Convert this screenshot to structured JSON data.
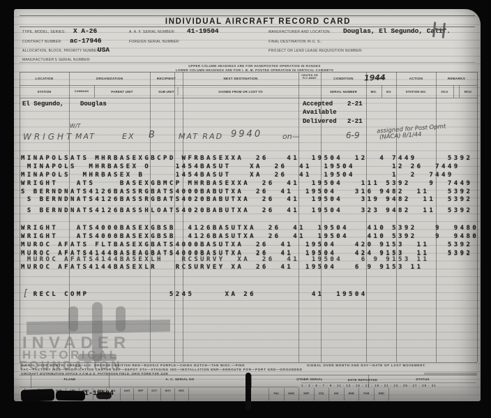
{
  "title": "INDIVIDUAL AIRCRAFT RECORD CARD",
  "scan": {
    "handwritten_corner_mark": "H"
  },
  "header_fields": {
    "type_label": "TYPE, MODEL, SERIES:",
    "type_value": "X A-26",
    "aaf_label": "A. A. F. SERIAL NUMBER:",
    "aaf_value": "41-19504",
    "mfr_label": "MANUFACTURER AND LOCATION:",
    "mfr_value": "Douglas, El Segundo, Calif.",
    "contract_label": "CONTRACT NUMBER:",
    "contract_value": "ac-17946",
    "foreign_label": "FOREIGN SERIAL NUMBER:",
    "dest_label": "FINAL DESTINATION IN U. S.:",
    "alloc_label": "ALLOCATION, BLOCK, PRIORITY NUMBER:",
    "alloc_value": "USA",
    "project_label": "PROJECT OR LEND LEASE REQUISITION NUMBER:",
    "mfr_serial_label": "MANUFACTURER'S SERIAL NUMBER:"
  },
  "notes": {
    "line1": "UPPER COLUMN HEADINGS ARE FOR HANDPOSTED OPERATION IN RANGES",
    "line2": "LOWER COLUMN HEADINGS ARE FOR I. B. M. POSTED OPERATION IN VERTICAL CABINETS"
  },
  "table": {
    "headers": {
      "location": "LOCATION",
      "organization": "ORGANIZATION",
      "recipient": "RECIPIENT",
      "next_destination": "NEXT DESTINATION",
      "crated": "CRATED OR FLY-AWAY",
      "condition": "CONDITION",
      "date": "DATE",
      "action": "ACTION",
      "remarks": "REMARKS",
      "station": "STATION",
      "command": "COMMAND",
      "parent_unit": "PARENT UNIT",
      "sub_unit": "SUB-UNIT",
      "route": "ROUTE",
      "gained": "GAINED FROM OR LOST TO",
      "serial_number": "SERIAL NUMBER",
      "mo": "MO.",
      "da": "DA",
      "station_no": "STATION NO.",
      "oca": "OCA",
      "rcu": "RCU"
    },
    "date_year_handwritten": "1944"
  },
  "entries": {
    "origin": {
      "station": "El Segundo,",
      "parent": "Douglas"
    },
    "status": [
      {
        "label": "Accepted",
        "date": "2-21"
      },
      {
        "label": "Available",
        "date": ""
      },
      {
        "label": "Delivered",
        "date": "2-21"
      }
    ],
    "handwritten": {
      "note_above": "W/T",
      "location": "WRIGHT",
      "command": "MAT",
      "parent": "EX",
      "sub_unit": "B",
      "gained": "MAT RAD",
      "gained_num": "9940",
      "crated": "on—",
      "date": "6-9",
      "remark_line1": "assigned for Post Opmt",
      "remark_line2": "(NACA) 8/1/44",
      "bracket": "["
    },
    "typed_rows": [
      "MINAPOLSATS MHRBASEXGBCPD WFRBASEXXA  26   41  19504  12  4 7449     5392",
      " MINAPOLS  MHRBASEX O    1454BASUT   XA  26  41  19504      12 26  7449",
      "MINAPOLS  MHRBASEX B     1454BASUT   XA  26  41  19504      1  2  7449",
      "WRIGHT   ATS    BASEXGBMCP MHRBASEXXA  26  41  19504   111 5392   9  7449",
      "S BERNDNATS4126BASSRGBATS4000BABUTXA  26  41  19504   316 9482  11   5392",
      " S BERNDNATS4126BASSRGBATS4020BABUTXA  26  41  19504   319 9482  11  5392",
      " S BERNDNATS4126BASSHLOATS4020BABUTXA  26  41  19504   323 9482  11  5392",
      "WRIGHT   ATS4000BASEXGBSB  4126BASUTXA  26  41  19504   410 5392   9  9480",
      "WRIGHT   ATS4000BASEXGBSB  4126BASUTXA  26  41  19504   410 5392   9  9480",
      "MUROC AFATS FLTBASEXGBATS4000BASUTXA  26  41  19504   420 9153  11   5392",
      "MUROC AFATS4144BASEAGBATS4000BASUTXA  26  41  19504   424 9153  11   5392",
      " MUROC AFATS4144BASEXLH   RCSURVY  XA  26  41  19504   6 9 9153 11",
      "MUROC AFATS4144BASEXLR   RCSURVEY XA  26  41  19504   6 9 9153 11",
      "  RECL COMP             5245     XA 26         41  19504"
    ]
  },
  "watermark": {
    "line1": "INVADER",
    "line2": "HISTORICAL",
    "line3": "FOUNDATION"
  },
  "legend": {
    "line1_left": "SIGNAL OVER MONTH: GREEN—U.S.  ORANGE—BRITISH  RED—RUSSIA  PURPLE—CHINA  DUTCH—TAN  MISC.—PINK",
    "line1_right": "SIGNAL OVER MONTH AND DAY—DATE OF LAST MOVEMENT.",
    "line2": "FAC—FACTORY  MOD—MODIFICATION CENTER  DEP—DEPOT  STA—STAGING  INS—INSTALLATION  ENR—ENROUTE  POR—PORT  GRD—GROUNDED",
    "line3": "AIRCRAFT DISTRIBUTION OFFICE   A.F.M.& D.   PATTERSON FIELD, OHIO   FORM FSR 1108"
  },
  "bottom_card": {
    "plane": "PLANE",
    "ac_serial_no": "A. C. SERIAL NO",
    "other_serial": "OTHER SERIAL",
    "status": "STATUS",
    "date_reported": "DATE REPORTED",
    "serial_typed": "41-19504",
    "months": [
      "JAN",
      "FEB",
      "MAR",
      "APR",
      "MAY",
      "JUN",
      "JUL",
      "AUG",
      "SEP",
      "OCT",
      "NOV",
      "DEC"
    ],
    "status_codes": [
      "FAC",
      "MOD",
      "DEP",
      "STA",
      "INS",
      "ENR",
      "POR",
      "GRD"
    ],
    "days": "1 - 3 - 5 - 7 - 9 - 11 - 13 - 15 - 17 - 19 - 21 - 23 - 25 - 27 - 29 - 31"
  }
}
